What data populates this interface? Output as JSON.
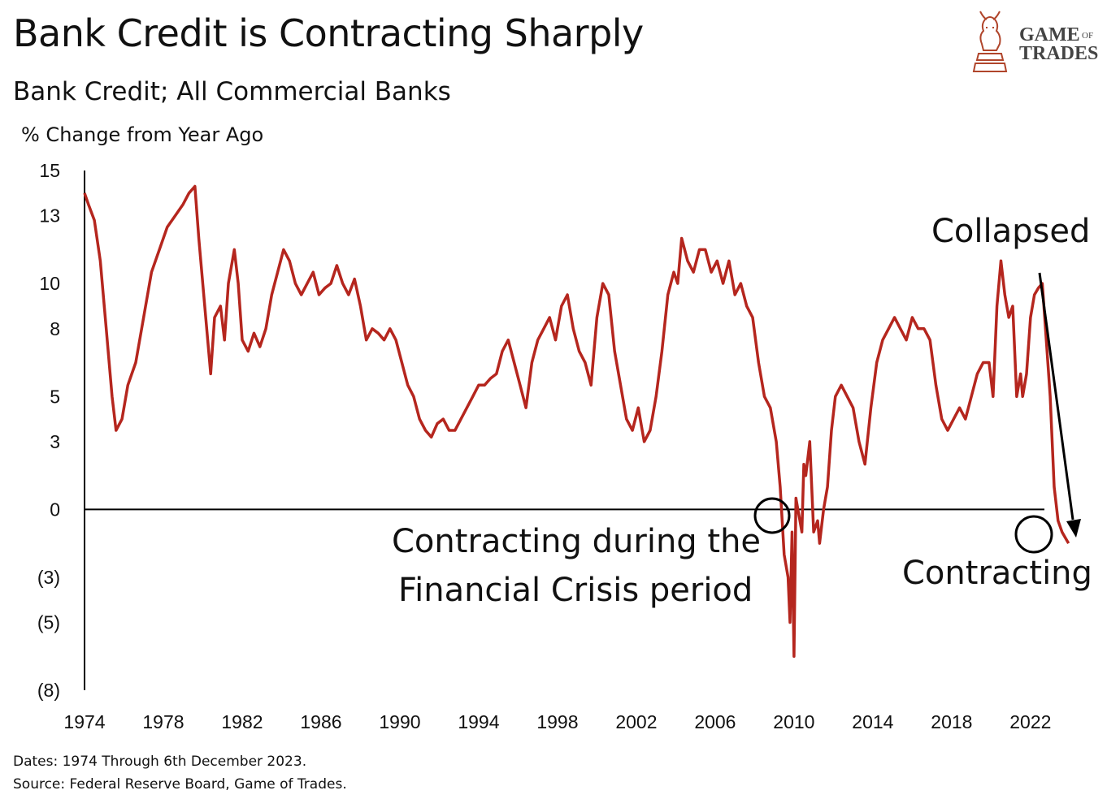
{
  "header": {
    "title": "Bank Credit is Contracting Sharply",
    "subtitle": "Bank Credit; All Commercial Banks",
    "unit": "% Change from Year Ago"
  },
  "logo": {
    "line1_big": "Game",
    "line1_small": "of",
    "line2": "Trades",
    "color": "#b0452b"
  },
  "footer": {
    "dates": "Dates: 1974 Through 6th December 2023.",
    "source": "Source: Federal Reserve Board, Game of Trades."
  },
  "annotations": {
    "collapsed": "Collapsed",
    "crisis_line1": "Contracting during the",
    "crisis_line2": "Financial Crisis period",
    "contracting": "Contracting"
  },
  "chart_data": {
    "type": "line",
    "title": "Bank Credit is Contracting Sharply",
    "subtitle": "Bank Credit; All Commercial Banks",
    "ylabel": "% Change from Year Ago",
    "xlabel": "",
    "xlim": [
      1974,
      2025.8
    ],
    "ylim": [
      -8,
      15
    ],
    "yticks": [
      15,
      13,
      10,
      8,
      5,
      3,
      0,
      -3,
      -5,
      -8
    ],
    "ytick_labels": [
      "15",
      "13",
      "10",
      "8",
      "5",
      "3",
      "0",
      "(3)",
      "(5)",
      "(8)"
    ],
    "xticks": [
      1974,
      1978,
      1982,
      1986,
      1990,
      1994,
      1998,
      2002,
      2006,
      2010,
      2014,
      2018,
      2022
    ],
    "xtick_labels": [
      "1974",
      "1978",
      "1982",
      "1986",
      "1990",
      "1994",
      "1998",
      "2002",
      "2006",
      "2010",
      "2014",
      "2018",
      "2022"
    ],
    "grid": false,
    "legend": "none",
    "line_color": "#b5261e",
    "series": [
      {
        "x": [
          1974.0,
          1974.2,
          1974.5,
          1974.8,
          1975.1,
          1975.4,
          1975.6,
          1975.9,
          1976.2,
          1976.6,
          1977.0,
          1977.4,
          1977.8,
          1978.2,
          1978.6,
          1979.0,
          1979.3,
          1979.6,
          1979.8,
          1980.1,
          1980.4,
          1980.6,
          1980.9,
          1981.1,
          1981.3,
          1981.6,
          1981.8,
          1982.0,
          1982.3,
          1982.6,
          1982.9,
          1983.2,
          1983.5,
          1983.8,
          1984.1,
          1984.4,
          1984.7,
          1985.0,
          1985.3,
          1985.6,
          1985.9,
          1986.2,
          1986.5,
          1986.8,
          1987.1,
          1987.4,
          1987.7,
          1988.0,
          1988.3,
          1988.6,
          1988.9,
          1989.2,
          1989.5,
          1989.8,
          1990.1,
          1990.4,
          1990.7,
          1991.0,
          1991.3,
          1991.6,
          1991.9,
          1992.2,
          1992.5,
          1992.8,
          1993.1,
          1993.4,
          1993.7,
          1994.0,
          1994.3,
          1994.6,
          1994.9,
          1995.2,
          1995.5,
          1995.8,
          1996.1,
          1996.4,
          1996.7,
          1997.0,
          1997.3,
          1997.6,
          1997.9,
          1998.2,
          1998.5,
          1998.8,
          1999.1,
          1999.4,
          1999.7,
          2000.0,
          2000.3,
          2000.6,
          2000.9,
          2001.2,
          2001.5,
          2001.8,
          2002.1,
          2002.4,
          2002.7,
          2003.0,
          2003.3,
          2003.6,
          2003.9,
          2004.1,
          2004.3,
          2004.6,
          2004.9,
          2005.2,
          2005.5,
          2005.8,
          2006.1,
          2006.4,
          2006.7,
          2007.0,
          2007.3,
          2007.6,
          2007.9,
          2008.2,
          2008.5,
          2008.8,
          2009.1,
          2009.3,
          2009.5,
          2009.7,
          2009.8,
          2009.9,
          2010.0,
          2010.1,
          2010.2,
          2010.3,
          2010.4,
          2010.5,
          2010.6,
          2010.8,
          2011.0,
          2011.2,
          2011.3,
          2011.5,
          2011.7,
          2011.9,
          2012.1,
          2012.4,
          2012.7,
          2013.0,
          2013.3,
          2013.6,
          2013.9,
          2014.2,
          2014.5,
          2014.8,
          2015.1,
          2015.4,
          2015.7,
          2016.0,
          2016.3,
          2016.6,
          2016.9,
          2017.2,
          2017.5,
          2017.8,
          2018.1,
          2018.4,
          2018.7,
          2019.0,
          2019.3,
          2019.6,
          2019.9,
          2020.1,
          2020.3,
          2020.5,
          2020.7,
          2020.9,
          2021.1,
          2021.3,
          2021.5,
          2021.6,
          2021.8,
          2022.0,
          2022.2,
          2022.4,
          2022.6,
          2022.8,
          2023.0,
          2023.2,
          2023.4,
          2023.6,
          2023.8,
          2023.93
        ],
        "y": [
          14.0,
          13.5,
          12.8,
          11.0,
          8.0,
          5.0,
          3.5,
          4.0,
          5.5,
          6.5,
          8.5,
          10.5,
          11.5,
          12.5,
          13.0,
          13.5,
          14.0,
          14.3,
          12.0,
          9.0,
          6.0,
          8.5,
          9.0,
          7.5,
          10.0,
          11.5,
          10.0,
          7.5,
          7.0,
          7.8,
          7.2,
          8.0,
          9.5,
          10.5,
          11.5,
          11.0,
          10.0,
          9.5,
          10.0,
          10.5,
          9.5,
          9.8,
          10.0,
          10.8,
          10.0,
          9.5,
          10.2,
          9.0,
          7.5,
          8.0,
          7.8,
          7.5,
          8.0,
          7.5,
          6.5,
          5.5,
          5.0,
          4.0,
          3.5,
          3.2,
          3.8,
          4.0,
          3.5,
          3.5,
          4.0,
          4.5,
          5.0,
          5.5,
          5.5,
          5.8,
          6.0,
          7.0,
          7.5,
          6.5,
          5.5,
          4.5,
          6.5,
          7.5,
          8.0,
          8.5,
          7.5,
          9.0,
          9.5,
          8.0,
          7.0,
          6.5,
          5.5,
          8.5,
          10.0,
          9.5,
          7.0,
          5.5,
          4.0,
          3.5,
          4.5,
          3.0,
          3.5,
          5.0,
          7.0,
          9.5,
          10.5,
          10.0,
          12.0,
          11.0,
          10.5,
          11.5,
          11.5,
          10.5,
          11.0,
          10.0,
          11.0,
          9.5,
          10.0,
          9.0,
          8.5,
          6.5,
          5.0,
          4.5,
          3.0,
          1.0,
          -2.0,
          -3.0,
          -5.0,
          -1.0,
          -6.5,
          0.5,
          0.0,
          -0.5,
          -1.0,
          2.0,
          1.5,
          3.0,
          -1.0,
          -0.5,
          -1.5,
          0.0,
          1.0,
          3.5,
          5.0,
          5.5,
          5.0,
          4.5,
          3.0,
          2.0,
          4.5,
          6.5,
          7.5,
          8.0,
          8.5,
          8.0,
          7.5,
          8.5,
          8.0,
          8.0,
          7.5,
          5.5,
          4.0,
          3.5,
          4.0,
          4.5,
          4.0,
          5.0,
          6.0,
          6.5,
          6.5,
          5.0,
          9.0,
          11.0,
          9.5,
          8.5,
          9.0,
          5.0,
          6.0,
          5.0,
          6.0,
          8.5,
          9.5,
          9.8,
          10.0,
          7.5,
          5.0,
          1.0,
          -0.5,
          -1.0,
          -1.3,
          -1.5
        ]
      }
    ]
  }
}
